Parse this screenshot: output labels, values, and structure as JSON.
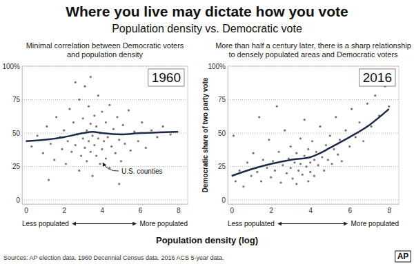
{
  "title": "Where you live may dictate how you vote",
  "subtitle": "Population density vs. Democratic vote",
  "xlabel": "Population density (log)",
  "source": "Sources: AP election data. 1960 Decennial Census data. 2016 ACS 5-year data.",
  "credit": "AP",
  "chart_data": [
    {
      "type": "scatter",
      "title": [
        "Minimal correlation between Democratic voters",
        "and population density"
      ],
      "annotations": [
        "1960",
        "U.S. counties"
      ],
      "xnotes": [
        "Less populated",
        "More populated"
      ],
      "xlim": [
        -0.2,
        8.5
      ],
      "xticks": [
        0,
        2,
        4,
        6,
        8
      ],
      "ylim": [
        -3,
        100
      ],
      "yticks": [
        {
          "value": 100,
          "label": "100%"
        },
        75,
        50,
        25,
        0
      ],
      "grid": true,
      "series": [
        {
          "type": "scatter",
          "marker": "circle",
          "color": "#4a4a4a",
          "x": [
            0.3,
            0.6,
            0.9,
            1.1,
            1.3,
            1.5,
            1.6,
            1.8,
            1.9,
            2.0,
            2.1,
            2.2,
            2.3,
            2.4,
            2.5,
            2.6,
            2.7,
            2.8,
            2.8,
            2.9,
            3.0,
            3.0,
            3.1,
            3.1,
            3.2,
            3.2,
            3.3,
            3.3,
            3.4,
            3.4,
            3.5,
            3.5,
            3.6,
            3.6,
            3.7,
            3.7,
            3.8,
            3.8,
            3.9,
            3.9,
            4.0,
            4.0,
            4.1,
            4.2,
            4.2,
            4.3,
            4.4,
            4.4,
            4.5,
            4.6,
            4.7,
            4.8,
            4.9,
            5.0,
            5.1,
            5.2,
            5.4,
            5.5,
            5.7,
            5.9,
            6.1,
            6.3,
            6.6,
            6.9,
            7.2,
            7.6,
            3.4,
            2.6,
            1.2,
            4.9
          ],
          "values": [
            40,
            48,
            35,
            55,
            42,
            30,
            62,
            47,
            38,
            52,
            27,
            44,
            68,
            36,
            58,
            41,
            49,
            22,
            75,
            33,
            46,
            61,
            39,
            85,
            52,
            29,
            44,
            70,
            36,
            57,
            48,
            18,
            63,
            41,
            33,
            55,
            46,
            78,
            27,
            50,
            38,
            66,
            44,
            31,
            58,
            47,
            24,
            71,
            40,
            53,
            35,
            62,
            45,
            29,
            56,
            42,
            67,
            37,
            51,
            44,
            58,
            39,
            52,
            47,
            55,
            49,
            92,
            88,
            15,
            12
          ]
        },
        {
          "type": "line",
          "line_style": "solid",
          "color": "#1c2a48",
          "x": [
            0,
            1,
            2,
            3,
            3.5,
            4,
            5,
            6,
            7,
            8
          ],
          "values": [
            44,
            45,
            47,
            50,
            51,
            50,
            49,
            50,
            50.5,
            51
          ]
        }
      ]
    },
    {
      "type": "scatter",
      "title": [
        "More than half a century later, there is a sharp relationship",
        "to densely populated areas and Democratic voters"
      ],
      "annotations": [
        "2016"
      ],
      "xnotes": [
        "Less populated",
        "More populated"
      ],
      "ylabel": "Democratic share of two party vote",
      "xlim": [
        -0.2,
        8.5
      ],
      "xticks": [
        0,
        2,
        4,
        6,
        8
      ],
      "ylim": [
        -3,
        100
      ],
      "yticks": [
        {
          "value": 100,
          "label": "100%"
        },
        75,
        50,
        25,
        0
      ],
      "grid": true,
      "series": [
        {
          "type": "scatter",
          "marker": "circle",
          "color": "#4a4a4a",
          "x": [
            0.2,
            0.4,
            0.6,
            0.8,
            1.0,
            1.1,
            1.3,
            1.5,
            1.6,
            1.8,
            1.9,
            2.0,
            2.1,
            2.2,
            2.4,
            2.5,
            2.6,
            2.7,
            2.8,
            2.9,
            3.0,
            3.0,
            3.1,
            3.2,
            3.3,
            3.3,
            3.4,
            3.5,
            3.5,
            3.6,
            3.7,
            3.7,
            3.8,
            3.9,
            3.9,
            4.0,
            4.0,
            4.1,
            4.2,
            4.2,
            4.3,
            4.4,
            4.5,
            4.6,
            4.7,
            4.8,
            4.9,
            5.0,
            5.1,
            5.2,
            5.3,
            5.4,
            5.5,
            5.6,
            5.8,
            6.0,
            6.1,
            6.3,
            6.5,
            6.7,
            6.9,
            7.1,
            7.3,
            7.5,
            7.8,
            8.0,
            8.2,
            1.4,
            2.3,
            0.1
          ],
          "values": [
            14,
            22,
            10,
            28,
            18,
            35,
            21,
            14,
            30,
            24,
            45,
            17,
            29,
            22,
            36,
            13,
            26,
            52,
            20,
            31,
            24,
            40,
            16,
            28,
            35,
            12,
            22,
            46,
            27,
            19,
            33,
            60,
            25,
            14,
            38,
            28,
            21,
            44,
            30,
            18,
            36,
            26,
            55,
            32,
            22,
            41,
            30,
            48,
            27,
            38,
            62,
            34,
            45,
            29,
            52,
            40,
            68,
            47,
            58,
            44,
            72,
            55,
            78,
            63,
            85,
            70,
            90,
            62,
            70,
            48
          ]
        },
        {
          "type": "line",
          "line_style": "solid",
          "color": "#1c2a48",
          "x": [
            0,
            1,
            2,
            3,
            4,
            4.5,
            5,
            6,
            7,
            8
          ],
          "values": [
            18,
            23,
            27,
            30,
            32,
            35,
            39,
            47,
            56,
            68
          ]
        }
      ]
    }
  ]
}
